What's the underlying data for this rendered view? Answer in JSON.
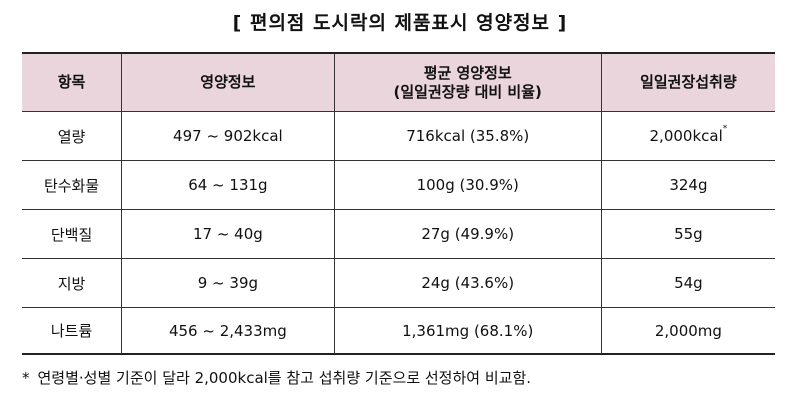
{
  "title": "[ 편의점 도시락의 제품표시 영양정보 ]",
  "table": {
    "header": [
      [
        "항목"
      ],
      [
        "영양정보"
      ],
      [
        "평균 영양정보",
        "(일일권장량 대비 비율)"
      ],
      [
        "일일권장섭취량"
      ]
    ],
    "rows": [
      [
        "열량",
        "497 ~ 902kcal",
        "716kcal (35.8%)",
        "2,000kcal"
      ],
      [
        "탄수화물",
        "64 ~ 131g",
        "100g (30.9%)",
        "324g"
      ],
      [
        "단백질",
        "17 ~ 40g",
        "27g (49.9%)",
        "55g"
      ],
      [
        "지방",
        "9 ~ 39g",
        "24g (43.6%)",
        "54g"
      ],
      [
        "나트륨",
        "456 ~ 2,433mg",
        "1,361mg (68.1%)",
        "2,000mg"
      ]
    ]
  },
  "footnote": {
    "marker": "*",
    "text": "연령별·성별 기준이 달라 2,000kcal를 참고 섭취량 기준으로 선정하여 비교함."
  }
}
